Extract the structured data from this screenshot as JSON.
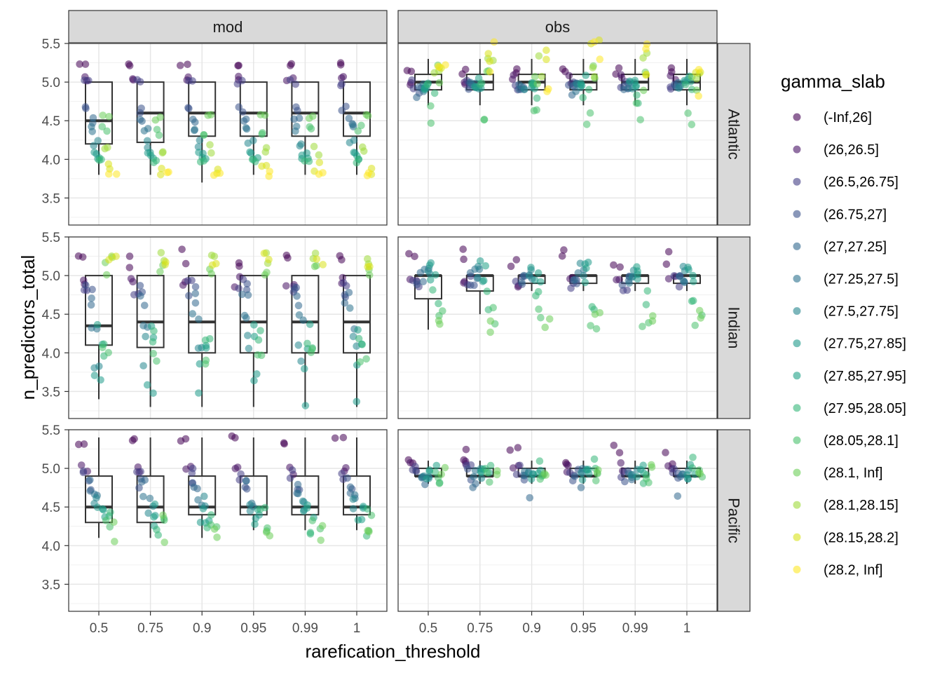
{
  "chart_data": {
    "type": "boxplot-jitter",
    "xlabel": "rarefication_threshold",
    "ylabel": "n_predictors_total",
    "x_categories": [
      "0.5",
      "0.75",
      "0.9",
      "0.95",
      "0.99",
      "1"
    ],
    "ylim": [
      3.15,
      5.5
    ],
    "y_ticks": [
      3.5,
      4.0,
      4.5,
      5.0,
      5.5
    ],
    "y_tick_labels": [
      "3.5",
      "4.0",
      "4.5",
      "5.0",
      "5.5"
    ],
    "grid": true,
    "facet_cols": [
      "mod",
      "obs"
    ],
    "facet_rows": [
      "Atlantic",
      "Indian",
      "Pacific"
    ],
    "legend": {
      "title": "gamma_slab",
      "position": "right",
      "entries": [
        {
          "label": "(-Inf,26]",
          "color": "#440154"
        },
        {
          "label": "(26,26.5]",
          "color": "#471365"
        },
        {
          "label": "(26.5,26.75]",
          "color": "#433E85"
        },
        {
          "label": "(26.75,27]",
          "color": "#3B528B"
        },
        {
          "label": "(27,27.25]",
          "color": "#31688E"
        },
        {
          "label": "(27.25,27.5]",
          "color": "#2C728E"
        },
        {
          "label": "(27.5,27.75]",
          "color": "#24868E"
        },
        {
          "label": "(27.75,27.85]",
          "color": "#1F9A8A"
        },
        {
          "label": "(27.85,27.95]",
          "color": "#1FA187"
        },
        {
          "label": "(27.95,28.05]",
          "color": "#35B779"
        },
        {
          "label": "(28.05,28.1]",
          "color": "#4AC16D"
        },
        {
          "label": "(28.1, Inf]",
          "color": "#6CCE59"
        },
        {
          "label": "(28.1,28.15]",
          "color": "#9FDA3A"
        },
        {
          "label": "(28.15,28.2]",
          "color": "#D8E219"
        },
        {
          "label": "(28.2, Inf]",
          "color": "#FDE725"
        }
      ]
    },
    "boxplots": {
      "Atlantic": {
        "mod": [
          {
            "x": "0.5",
            "lower_whisker": 3.8,
            "q1": 4.2,
            "median": 4.5,
            "q3": 5.0,
            "upper_whisker": 5.0
          },
          {
            "x": "0.75",
            "lower_whisker": 3.8,
            "q1": 4.22,
            "median": 4.6,
            "q3": 5.0,
            "upper_whisker": 5.0
          },
          {
            "x": "0.9",
            "lower_whisker": 3.7,
            "q1": 4.3,
            "median": 4.6,
            "q3": 5.0,
            "upper_whisker": 5.0
          },
          {
            "x": "0.95",
            "lower_whisker": 3.8,
            "q1": 4.3,
            "median": 4.6,
            "q3": 5.0,
            "upper_whisker": 5.0
          },
          {
            "x": "0.99",
            "lower_whisker": 3.8,
            "q1": 4.3,
            "median": 4.6,
            "q3": 5.0,
            "upper_whisker": 5.0
          },
          {
            "x": "1",
            "lower_whisker": 3.8,
            "q1": 4.3,
            "median": 4.6,
            "q3": 5.0,
            "upper_whisker": 5.0
          }
        ],
        "obs": [
          {
            "x": "0.5",
            "lower_whisker": 4.7,
            "q1": 4.9,
            "median": 5.0,
            "q3": 5.1,
            "upper_whisker": 5.3
          },
          {
            "x": "0.75",
            "lower_whisker": 4.7,
            "q1": 4.9,
            "median": 5.0,
            "q3": 5.1,
            "upper_whisker": 5.3
          },
          {
            "x": "0.9",
            "lower_whisker": 4.7,
            "q1": 4.9,
            "median": 5.0,
            "q3": 5.1,
            "upper_whisker": 5.3
          },
          {
            "x": "0.95",
            "lower_whisker": 4.7,
            "q1": 4.9,
            "median": 5.0,
            "q3": 5.1,
            "upper_whisker": 5.3
          },
          {
            "x": "0.99",
            "lower_whisker": 4.7,
            "q1": 4.9,
            "median": 5.0,
            "q3": 5.1,
            "upper_whisker": 5.3
          },
          {
            "x": "1",
            "lower_whisker": 4.7,
            "q1": 4.9,
            "median": 5.0,
            "q3": 5.1,
            "upper_whisker": 5.3
          }
        ]
      },
      "Indian": {
        "mod": [
          {
            "x": "0.5",
            "lower_whisker": 3.4,
            "q1": 4.1,
            "median": 4.35,
            "q3": 5.0,
            "upper_whisker": 5.0
          },
          {
            "x": "0.75",
            "lower_whisker": 3.3,
            "q1": 4.07,
            "median": 4.4,
            "q3": 5.0,
            "upper_whisker": 5.0
          },
          {
            "x": "0.9",
            "lower_whisker": 3.3,
            "q1": 4.0,
            "median": 4.4,
            "q3": 5.0,
            "upper_whisker": 5.0
          },
          {
            "x": "0.95",
            "lower_whisker": 3.3,
            "q1": 4.0,
            "median": 4.4,
            "q3": 5.0,
            "upper_whisker": 5.0
          },
          {
            "x": "0.99",
            "lower_whisker": 3.3,
            "q1": 4.0,
            "median": 4.4,
            "q3": 5.0,
            "upper_whisker": 5.0
          },
          {
            "x": "1",
            "lower_whisker": 3.3,
            "q1": 4.0,
            "median": 4.4,
            "q3": 5.0,
            "upper_whisker": 5.0
          }
        ],
        "obs": [
          {
            "x": "0.5",
            "lower_whisker": 4.3,
            "q1": 4.7,
            "median": 5.0,
            "q3": 5.0,
            "upper_whisker": 5.0
          },
          {
            "x": "0.75",
            "lower_whisker": 4.5,
            "q1": 4.8,
            "median": 5.0,
            "q3": 5.0,
            "upper_whisker": 5.0
          },
          {
            "x": "0.9",
            "lower_whisker": 4.8,
            "q1": 4.9,
            "median": 5.0,
            "q3": 5.0,
            "upper_whisker": 5.0
          },
          {
            "x": "0.95",
            "lower_whisker": 4.8,
            "q1": 4.9,
            "median": 5.0,
            "q3": 5.0,
            "upper_whisker": 5.0
          },
          {
            "x": "0.99",
            "lower_whisker": 4.8,
            "q1": 4.9,
            "median": 5.0,
            "q3": 5.0,
            "upper_whisker": 5.0
          },
          {
            "x": "1",
            "lower_whisker": 4.8,
            "q1": 4.9,
            "median": 5.0,
            "q3": 5.0,
            "upper_whisker": 5.0
          }
        ]
      },
      "Pacific": {
        "mod": [
          {
            "x": "0.5",
            "lower_whisker": 4.1,
            "q1": 4.3,
            "median": 4.5,
            "q3": 4.9,
            "upper_whisker": 5.4
          },
          {
            "x": "0.75",
            "lower_whisker": 4.1,
            "q1": 4.3,
            "median": 4.5,
            "q3": 4.9,
            "upper_whisker": 5.4
          },
          {
            "x": "0.9",
            "lower_whisker": 4.1,
            "q1": 4.4,
            "median": 4.5,
            "q3": 4.9,
            "upper_whisker": 5.4
          },
          {
            "x": "0.95",
            "lower_whisker": 4.2,
            "q1": 4.4,
            "median": 4.5,
            "q3": 4.9,
            "upper_whisker": 5.4
          },
          {
            "x": "0.99",
            "lower_whisker": 4.2,
            "q1": 4.4,
            "median": 4.5,
            "q3": 4.9,
            "upper_whisker": 5.4
          },
          {
            "x": "1",
            "lower_whisker": 4.2,
            "q1": 4.4,
            "median": 4.5,
            "q3": 4.9,
            "upper_whisker": 5.4
          }
        ],
        "obs": [
          {
            "x": "0.5",
            "lower_whisker": 4.8,
            "q1": 4.9,
            "median": 4.9,
            "q3": 5.0,
            "upper_whisker": 5.1
          },
          {
            "x": "0.75",
            "lower_whisker": 4.8,
            "q1": 4.9,
            "median": 4.9,
            "q3": 5.0,
            "upper_whisker": 5.1
          },
          {
            "x": "0.9",
            "lower_whisker": 4.8,
            "q1": 4.9,
            "median": 4.9,
            "q3": 5.0,
            "upper_whisker": 5.1
          },
          {
            "x": "0.95",
            "lower_whisker": 4.8,
            "q1": 4.9,
            "median": 4.9,
            "q3": 5.0,
            "upper_whisker": 5.1
          },
          {
            "x": "0.99",
            "lower_whisker": 4.8,
            "q1": 4.9,
            "median": 4.9,
            "q3": 5.0,
            "upper_whisker": 5.1
          },
          {
            "x": "1",
            "lower_whisker": 4.8,
            "q1": 4.9,
            "median": 4.9,
            "q3": 5.0,
            "upper_whisker": 5.1
          }
        ]
      }
    },
    "point_distributions": {
      "Atlantic": {
        "mod": [
          [
            5.25,
            5.2
          ],
          [
            5.1,
            5.0
          ],
          [
            5.05,
            4.95
          ],
          [
            4.7,
            4.6
          ],
          [
            4.55,
            4.45
          ],
          [
            4.45,
            4.35
          ],
          [
            4.25,
            4.15
          ],
          [
            4.1,
            4.05
          ],
          [
            4.05,
            4.0
          ],
          [
            4.0,
            3.95
          ],
          [
            4.45,
            4.3
          ],
          [
            4.6,
            4.5
          ],
          [
            4.2,
            4.05
          ],
          [
            4.0,
            3.8
          ],
          [
            3.85,
            3.78
          ]
        ],
        "obs": [
          [
            5.2,
            5.05
          ],
          [
            5.1,
            4.95
          ],
          [
            5.05,
            4.9
          ],
          [
            5.0,
            4.85
          ],
          [
            5.0,
            4.8
          ],
          [
            5.0,
            4.85
          ],
          [
            5.0,
            4.9
          ],
          [
            5.05,
            4.9
          ],
          [
            5.1,
            4.9
          ],
          [
            5.0,
            4.7
          ],
          [
            4.75,
            4.45
          ],
          [
            5.25,
            4.85
          ],
          [
            5.4,
            5.0
          ],
          [
            5.55,
            4.85
          ],
          [
            5.55,
            4.8
          ]
        ]
      },
      "Indian": {
        "mod": [
          [
            5.38,
            5.1
          ],
          [
            5.0,
            4.85
          ],
          [
            4.95,
            4.75
          ],
          [
            4.9,
            4.7
          ],
          [
            4.8,
            4.6
          ],
          [
            4.6,
            4.3
          ],
          [
            4.25,
            3.8
          ],
          [
            3.9,
            3.3
          ],
          [
            4.4,
            4.05
          ],
          [
            4.3,
            3.95
          ],
          [
            4.15,
            3.85
          ],
          [
            5.2,
            5.0
          ],
          [
            5.3,
            5.15
          ],
          [
            5.3,
            5.1
          ]
        ],
        "obs": [
          [
            5.35,
            5.1
          ],
          [
            5.0,
            4.85
          ],
          [
            5.0,
            4.8
          ],
          [
            5.0,
            4.85
          ],
          [
            5.05,
            4.85
          ],
          [
            5.1,
            4.9
          ],
          [
            5.2,
            4.95
          ],
          [
            5.2,
            4.9
          ],
          [
            5.15,
            4.9
          ],
          [
            4.85,
            4.55
          ],
          [
            4.6,
            4.3
          ],
          [
            4.55,
            4.25
          ]
        ]
      },
      "Pacific": {
        "mod": [
          [
            5.42,
            5.3
          ],
          [
            5.05,
            4.9
          ],
          [
            5.0,
            4.8
          ],
          [
            4.9,
            4.7
          ],
          [
            4.85,
            4.6
          ],
          [
            4.7,
            4.45
          ],
          [
            4.7,
            4.4
          ],
          [
            4.55,
            4.3
          ],
          [
            4.5,
            4.25
          ],
          [
            4.5,
            4.1
          ],
          [
            4.4,
            4.15
          ],
          [
            4.4,
            4.0
          ]
        ],
        "obs": [
          [
            5.35,
            5.05
          ],
          [
            5.1,
            4.95
          ],
          [
            5.05,
            4.85
          ],
          [
            5.0,
            4.8
          ],
          [
            5.0,
            4.6
          ],
          [
            5.0,
            4.85
          ],
          [
            5.0,
            4.85
          ],
          [
            5.0,
            4.85
          ],
          [
            5.05,
            4.9
          ],
          [
            5.15,
            4.8
          ],
          [
            5.0,
            4.8
          ],
          [
            5.05,
            4.9
          ]
        ]
      }
    }
  }
}
